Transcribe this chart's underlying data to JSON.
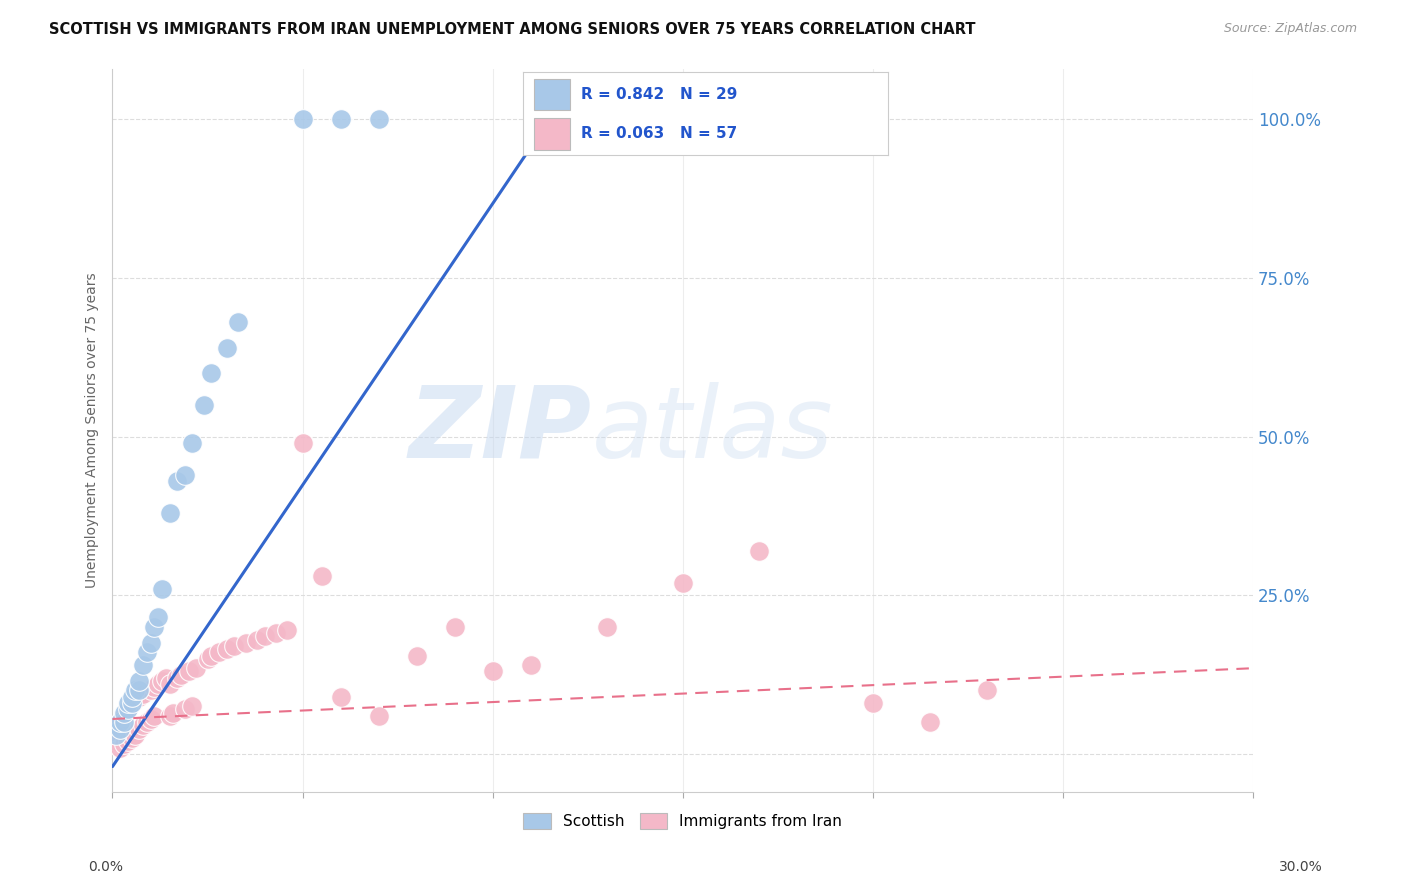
{
  "title": "SCOTTISH VS IMMIGRANTS FROM IRAN UNEMPLOYMENT AMONG SENIORS OVER 75 YEARS CORRELATION CHART",
  "source": "Source: ZipAtlas.com",
  "ylabel": "Unemployment Among Seniors over 75 years",
  "watermark": "ZIPatlas",
  "scottish_color": "#a8c8e8",
  "iran_color": "#f4b8c8",
  "scottish_line_color": "#3366cc",
  "iran_line_color": "#e8708a",
  "background_color": "#ffffff",
  "legend_r_color": "#2255cc",
  "scottish_x": [
    0.001,
    0.002,
    0.002,
    0.003,
    0.003,
    0.004,
    0.004,
    0.005,
    0.005,
    0.006,
    0.007,
    0.007,
    0.008,
    0.009,
    0.01,
    0.011,
    0.012,
    0.013,
    0.015,
    0.017,
    0.019,
    0.021,
    0.024,
    0.026,
    0.03,
    0.033,
    0.05,
    0.06,
    0.07
  ],
  "scottish_y": [
    0.03,
    0.04,
    0.05,
    0.05,
    0.065,
    0.07,
    0.08,
    0.08,
    0.09,
    0.1,
    0.1,
    0.115,
    0.14,
    0.16,
    0.175,
    0.2,
    0.215,
    0.26,
    0.38,
    0.43,
    0.44,
    0.49,
    0.55,
    0.6,
    0.64,
    0.68,
    1.0,
    1.0,
    1.0
  ],
  "iran_x": [
    0.001,
    0.001,
    0.002,
    0.002,
    0.003,
    0.003,
    0.004,
    0.004,
    0.005,
    0.005,
    0.006,
    0.006,
    0.007,
    0.007,
    0.008,
    0.008,
    0.009,
    0.01,
    0.01,
    0.011,
    0.011,
    0.012,
    0.013,
    0.014,
    0.015,
    0.015,
    0.016,
    0.017,
    0.018,
    0.019,
    0.02,
    0.021,
    0.022,
    0.025,
    0.026,
    0.028,
    0.03,
    0.032,
    0.035,
    0.038,
    0.04,
    0.043,
    0.046,
    0.05,
    0.055,
    0.06,
    0.07,
    0.08,
    0.09,
    0.1,
    0.11,
    0.13,
    0.15,
    0.17,
    0.2,
    0.215,
    0.23
  ],
  "iran_y": [
    0.02,
    0.035,
    0.01,
    0.05,
    0.015,
    0.06,
    0.02,
    0.07,
    0.025,
    0.08,
    0.03,
    0.085,
    0.04,
    0.09,
    0.045,
    0.095,
    0.05,
    0.055,
    0.1,
    0.06,
    0.105,
    0.11,
    0.115,
    0.12,
    0.06,
    0.11,
    0.065,
    0.12,
    0.125,
    0.07,
    0.13,
    0.075,
    0.135,
    0.15,
    0.155,
    0.16,
    0.165,
    0.17,
    0.175,
    0.18,
    0.185,
    0.19,
    0.195,
    0.49,
    0.28,
    0.09,
    0.06,
    0.155,
    0.2,
    0.13,
    0.14,
    0.2,
    0.27,
    0.32,
    0.08,
    0.05,
    0.1
  ],
  "scottish_line_x0": 0.0,
  "scottish_line_y0": -0.02,
  "scottish_line_x1": 0.115,
  "scottish_line_y1": 1.0,
  "iran_line_x0": 0.0,
  "iran_line_y0": 0.055,
  "iran_line_x1": 0.3,
  "iran_line_y1": 0.135,
  "xlim": [
    0.0,
    0.3
  ],
  "ylim": [
    -0.06,
    1.08
  ],
  "yticks": [
    0.0,
    0.25,
    0.5,
    0.75,
    1.0
  ],
  "ytick_labels_right": [
    "",
    "25.0%",
    "50.0%",
    "75.0%",
    "100.0%"
  ],
  "xtick_positions": [
    0.0,
    0.05,
    0.1,
    0.15,
    0.2,
    0.25,
    0.3
  ],
  "grid_color": "#dddddd",
  "spine_color": "#cccccc"
}
